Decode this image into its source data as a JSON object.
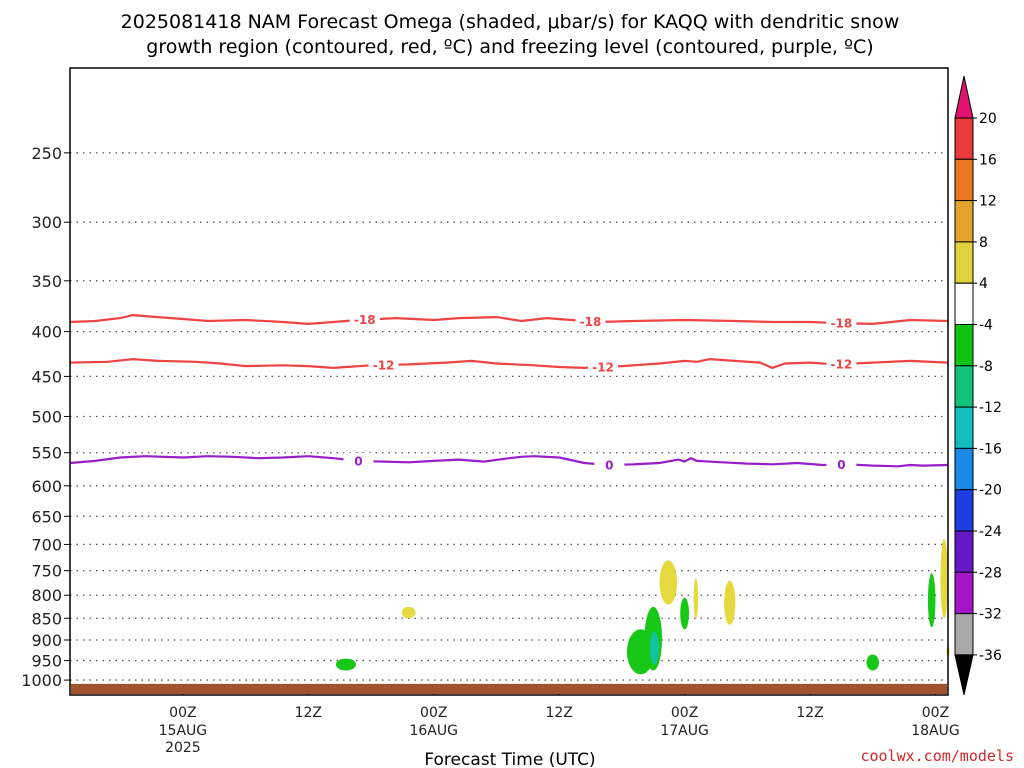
{
  "chart_data": {
    "type": "time-height",
    "title_line1": "2025081418 NAM Forecast Omega (shaded, μbar/s) for KAQQ with dendritic snow",
    "title_line2": "growth region (contoured, red, ºC) and freezing level (contoured, purple, ºC)",
    "xlabel": "Forecast Time (UTC)",
    "credit": "coolwx.com/models",
    "y_ticks": [
      250,
      300,
      350,
      400,
      450,
      500,
      550,
      600,
      650,
      700,
      750,
      800,
      850,
      900,
      950,
      1000
    ],
    "y_range_hPa": [
      200,
      1040
    ],
    "x_range_hours": [
      -9,
      61
    ],
    "x_ticks": [
      {
        "h": 0,
        "top": "00Z",
        "mid": "15AUG",
        "bot": "2025"
      },
      {
        "h": 10,
        "top": "12Z",
        "mid": "",
        "bot": ""
      },
      {
        "h": 20,
        "top": "00Z",
        "mid": "16AUG",
        "bot": ""
      },
      {
        "h": 30,
        "top": "12Z",
        "mid": "",
        "bot": ""
      },
      {
        "h": 40,
        "top": "00Z",
        "mid": "17AUG",
        "bot": ""
      },
      {
        "h": 50,
        "top": "12Z",
        "mid": "",
        "bot": ""
      },
      {
        "h": 60,
        "top": "00Z",
        "mid": "18AUG",
        "bot": ""
      }
    ],
    "contours": [
      {
        "name": "-18",
        "color": "#ee4444",
        "points": [
          [
            -9,
            390
          ],
          [
            -7,
            389
          ],
          [
            -5,
            386
          ],
          [
            -4,
            383
          ],
          [
            -3,
            384
          ],
          [
            0,
            387
          ],
          [
            2,
            389
          ],
          [
            5,
            388
          ],
          [
            8,
            390
          ],
          [
            10,
            392
          ],
          [
            12,
            390
          ],
          [
            14,
            388
          ],
          [
            17,
            386
          ],
          [
            20,
            388
          ],
          [
            22,
            386
          ],
          [
            25,
            385
          ],
          [
            27,
            389
          ],
          [
            29,
            386
          ],
          [
            31,
            388
          ],
          [
            33,
            390
          ],
          [
            36,
            389
          ],
          [
            40,
            388
          ],
          [
            44,
            389
          ],
          [
            47,
            390
          ],
          [
            50,
            390
          ],
          [
            52,
            391
          ],
          [
            55,
            392
          ],
          [
            58,
            388
          ],
          [
            61,
            389
          ]
        ],
        "labels": [
          {
            "h": 14.5,
            "text": "-18"
          },
          {
            "h": 32.5,
            "text": "-18"
          },
          {
            "h": 52.5,
            "text": "-18"
          }
        ]
      },
      {
        "name": "-12",
        "color": "#ee4444",
        "points": [
          [
            -9,
            434
          ],
          [
            -6,
            433
          ],
          [
            -4,
            430
          ],
          [
            -2,
            432
          ],
          [
            1,
            433
          ],
          [
            3,
            435
          ],
          [
            5,
            438
          ],
          [
            8,
            437
          ],
          [
            10,
            438
          ],
          [
            12,
            440
          ],
          [
            15,
            437
          ],
          [
            18,
            436
          ],
          [
            21,
            434
          ],
          [
            23,
            432
          ],
          [
            25,
            435
          ],
          [
            28,
            437
          ],
          [
            30,
            439
          ],
          [
            32,
            440
          ],
          [
            35,
            438
          ],
          [
            38,
            435
          ],
          [
            40,
            432
          ],
          [
            41,
            433
          ],
          [
            42,
            430
          ],
          [
            44,
            432
          ],
          [
            46,
            434
          ],
          [
            47,
            440
          ],
          [
            48,
            435
          ],
          [
            50,
            434
          ],
          [
            52,
            436
          ],
          [
            55,
            434
          ],
          [
            58,
            432
          ],
          [
            61,
            434
          ]
        ],
        "labels": [
          {
            "h": 16,
            "text": "-12"
          },
          {
            "h": 33.5,
            "text": "-12"
          },
          {
            "h": 52.5,
            "text": "-12"
          }
        ]
      },
      {
        "name": "0",
        "color": "#9a1ec8",
        "points": [
          [
            -9,
            565
          ],
          [
            -7,
            562
          ],
          [
            -5,
            557
          ],
          [
            -3,
            555
          ],
          [
            0,
            557
          ],
          [
            2,
            555
          ],
          [
            4,
            556
          ],
          [
            6,
            558
          ],
          [
            8,
            557
          ],
          [
            10,
            555
          ],
          [
            12,
            558
          ],
          [
            14,
            562
          ],
          [
            16,
            563
          ],
          [
            18,
            564
          ],
          [
            20,
            562
          ],
          [
            22,
            560
          ],
          [
            24,
            563
          ],
          [
            26,
            558
          ],
          [
            27,
            556
          ],
          [
            28,
            555
          ],
          [
            30,
            557
          ],
          [
            32,
            565
          ],
          [
            34,
            568
          ],
          [
            36,
            567
          ],
          [
            38,
            565
          ],
          [
            39.5,
            560
          ],
          [
            40,
            563
          ],
          [
            40.5,
            558
          ],
          [
            41,
            562
          ],
          [
            43,
            564
          ],
          [
            45,
            566
          ],
          [
            47,
            567
          ],
          [
            49,
            565
          ],
          [
            51,
            568
          ],
          [
            53,
            567
          ],
          [
            55,
            569
          ],
          [
            57,
            570
          ],
          [
            58,
            568
          ],
          [
            59,
            569
          ],
          [
            61,
            568
          ]
        ],
        "labels": [
          {
            "h": 14,
            "text": "0"
          },
          {
            "h": 34,
            "text": "0"
          },
          {
            "h": 52.5,
            "text": "0"
          }
        ]
      }
    ],
    "omega_blobs": [
      {
        "color": "#e5d93d",
        "h": 18,
        "hw": 0.55,
        "p0": 825,
        "p1": 850
      },
      {
        "color": "#17c817",
        "h": 13,
        "hw": 0.8,
        "p0": 945,
        "p1": 975
      },
      {
        "color": "#17c817",
        "h": 36.5,
        "hw": 1.1,
        "p0": 875,
        "p1": 985
      },
      {
        "color": "#17c817",
        "h": 37.5,
        "hw": 0.7,
        "p0": 825,
        "p1": 975
      },
      {
        "color": "#11c3a5",
        "h": 37.6,
        "hw": 0.35,
        "p0": 880,
        "p1": 960
      },
      {
        "color": "#e5d93d",
        "h": 38.7,
        "hw": 0.7,
        "p0": 730,
        "p1": 820
      },
      {
        "color": "#17c817",
        "h": 40,
        "hw": 0.35,
        "p0": 805,
        "p1": 875
      },
      {
        "color": "#e5d93d",
        "h": 40.9,
        "hw": 0.18,
        "p0": 765,
        "p1": 850
      },
      {
        "color": "#e5d93d",
        "h": 43.6,
        "hw": 0.45,
        "p0": 770,
        "p1": 865
      },
      {
        "color": "#17c817",
        "h": 55,
        "hw": 0.5,
        "p0": 935,
        "p1": 975
      },
      {
        "color": "#17c817",
        "h": 59.7,
        "hw": 0.3,
        "p0": 755,
        "p1": 870
      },
      {
        "color": "#e5d93d",
        "h": 60.7,
        "hw": 0.3,
        "p0": 690,
        "p1": 850
      },
      {
        "color": "#e5d93d",
        "h": 61,
        "hw": 0.12,
        "p0": 915,
        "p1": 940
      }
    ],
    "colorbar": {
      "levels": [
        "20",
        "16",
        "12",
        "8",
        "4",
        "-4",
        "-8",
        "-12",
        "-16",
        "-20",
        "-24",
        "-28",
        "-32",
        "-36"
      ],
      "colors": [
        "#ea3a3a",
        "#ea7720",
        "#e4a32c",
        "#e0d23c",
        "#ffffff",
        "#11c311",
        "#11c47a",
        "#14bdbd",
        "#1a8ae8",
        "#1d3ee0",
        "#6418c8",
        "#a614c8",
        "#a8a8a8"
      ],
      "top_color": "#e01470",
      "bottom_color": "#000000"
    },
    "ground": {
      "color": "#a0522d",
      "p_top": 1010
    },
    "grid": "dotted"
  }
}
